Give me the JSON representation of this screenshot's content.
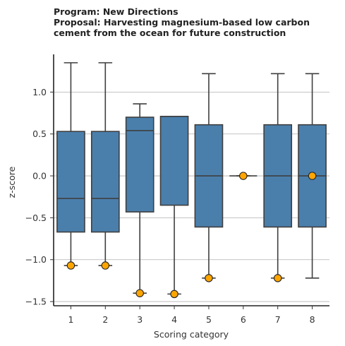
{
  "chart_data": {
    "type": "box",
    "title_lines": [
      "Program: New Directions",
      "Proposal: Harvesting magnesium-based low carbon",
      "cement from the ocean for future construction"
    ],
    "xlabel": "Scoring category",
    "ylabel": "z-score",
    "ylim": [
      -1.55,
      1.45
    ],
    "yticks": [
      -1.5,
      -1.0,
      -0.5,
      0.0,
      0.5,
      1.0
    ],
    "ytick_labels": [
      "−1.5",
      "−1.0",
      "−0.5",
      "0.0",
      "0.5",
      "1.0"
    ],
    "categories": [
      "1",
      "2",
      "3",
      "4",
      "5",
      "6",
      "7",
      "8"
    ],
    "grid": "horizontal",
    "box_color": "#4a7fac",
    "point_color": "#ffa500",
    "boxes": [
      {
        "category": "1",
        "whisker_low": -1.07,
        "q1": -0.67,
        "median": -0.27,
        "q3": 0.53,
        "whisker_high": 1.35,
        "point": -1.07
      },
      {
        "category": "2",
        "whisker_low": -1.07,
        "q1": -0.67,
        "median": -0.27,
        "q3": 0.53,
        "whisker_high": 1.35,
        "point": -1.07
      },
      {
        "category": "3",
        "whisker_low": -1.4,
        "q1": -0.43,
        "median": 0.54,
        "q3": 0.7,
        "whisker_high": 0.86,
        "point": -1.4
      },
      {
        "category": "4",
        "whisker_low": -1.41,
        "q1": -0.35,
        "median": 0.71,
        "q3": 0.71,
        "whisker_high": 0.71,
        "point": -1.41
      },
      {
        "category": "5",
        "whisker_low": -1.22,
        "q1": -0.61,
        "median": 0.0,
        "q3": 0.61,
        "whisker_high": 1.22,
        "point": -1.22
      },
      {
        "category": "6",
        "whisker_low": 0.0,
        "q1": 0.0,
        "median": 0.0,
        "q3": 0.0,
        "whisker_high": 0.0,
        "point": 0.0
      },
      {
        "category": "7",
        "whisker_low": -1.22,
        "q1": -0.61,
        "median": 0.0,
        "q3": 0.61,
        "whisker_high": 1.22,
        "point": -1.22
      },
      {
        "category": "8",
        "whisker_low": -1.22,
        "q1": -0.61,
        "median": 0.0,
        "q3": 0.61,
        "whisker_high": 1.22,
        "point": 0.0
      }
    ]
  }
}
